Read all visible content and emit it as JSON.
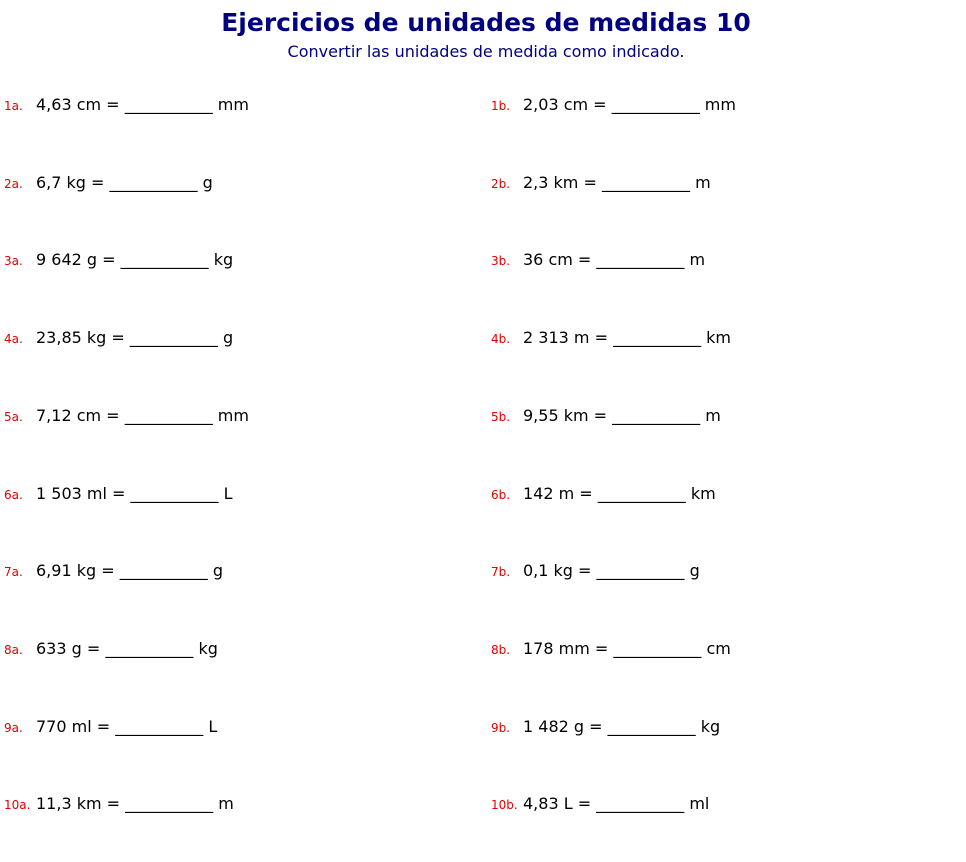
{
  "title": "Ejercicios de unidades de medidas 10",
  "subtitle": "Convertir las unidades de medida como indicado.",
  "blank": "___________",
  "exercises": [
    {
      "a": {
        "label": "1a.",
        "expr": "4,63 cm =",
        "unit": "mm"
      },
      "b": {
        "label": "1b.",
        "expr": "2,03 cm =",
        "unit": "mm"
      }
    },
    {
      "a": {
        "label": "2a.",
        "expr": "6,7 kg =",
        "unit": "g"
      },
      "b": {
        "label": "2b.",
        "expr": "2,3 km =",
        "unit": "m"
      }
    },
    {
      "a": {
        "label": "3a.",
        "expr": "9 642 g =",
        "unit": "kg"
      },
      "b": {
        "label": "3b.",
        "expr": "36 cm =",
        "unit": "m"
      }
    },
    {
      "a": {
        "label": "4a.",
        "expr": "23,85 kg =",
        "unit": "g"
      },
      "b": {
        "label": "4b.",
        "expr": "2 313 m =",
        "unit": "km"
      }
    },
    {
      "a": {
        "label": "5a.",
        "expr": "7,12 cm =",
        "unit": "mm"
      },
      "b": {
        "label": "5b.",
        "expr": "9,55 km =",
        "unit": "m"
      }
    },
    {
      "a": {
        "label": "6a.",
        "expr": "1 503 ml =",
        "unit": "L"
      },
      "b": {
        "label": "6b.",
        "expr": "142 m =",
        "unit": "km"
      }
    },
    {
      "a": {
        "label": "7a.",
        "expr": "6,91 kg =",
        "unit": "g"
      },
      "b": {
        "label": "7b.",
        "expr": "0,1 kg =",
        "unit": "g"
      }
    },
    {
      "a": {
        "label": "8a.",
        "expr": "633 g =",
        "unit": "kg"
      },
      "b": {
        "label": "8b.",
        "expr": "178 mm =",
        "unit": "cm"
      }
    },
    {
      "a": {
        "label": "9a.",
        "expr": "770 ml =",
        "unit": "L"
      },
      "b": {
        "label": "9b.",
        "expr": "1 482 g =",
        "unit": "kg"
      }
    },
    {
      "a": {
        "label": "10a.",
        "expr": "11,3 km =",
        "unit": "m"
      },
      "b": {
        "label": "10b.",
        "expr": "4,83 L =",
        "unit": "ml"
      }
    }
  ]
}
